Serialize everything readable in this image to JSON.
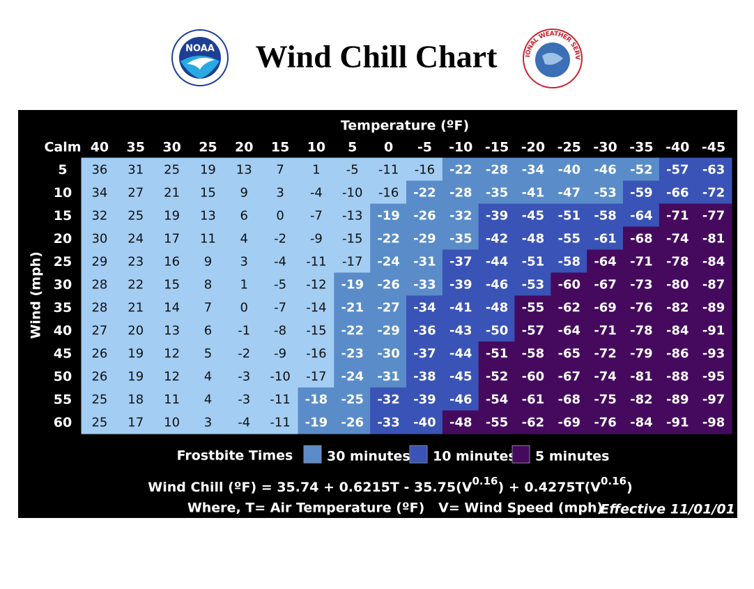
{
  "header": {
    "title": "Wind Chill Chart",
    "logos": {
      "noaa": "NOAA",
      "nws": "NATIONAL WEATHER SERVICE"
    }
  },
  "table": {
    "temperature_label": "Temperature (ºF)",
    "wind_label": "Wind (mph)",
    "calm_label": "Calm",
    "temperatures": [
      40,
      35,
      30,
      25,
      20,
      15,
      10,
      5,
      0,
      -5,
      -10,
      -15,
      -20,
      -25,
      -30,
      -35,
      -40,
      -45
    ],
    "winds": [
      5,
      10,
      15,
      20,
      25,
      30,
      35,
      40,
      45,
      50,
      55,
      60
    ],
    "rows": [
      [
        36,
        31,
        25,
        19,
        13,
        7,
        1,
        -5,
        -11,
        -16,
        -22,
        -28,
        -34,
        -40,
        -46,
        -52,
        -57,
        -63
      ],
      [
        34,
        27,
        21,
        15,
        9,
        3,
        -4,
        -10,
        -16,
        -22,
        -28,
        -35,
        -41,
        -47,
        -53,
        -59,
        -66,
        -72
      ],
      [
        32,
        25,
        19,
        13,
        6,
        0,
        -7,
        -13,
        -19,
        -26,
        -32,
        -39,
        -45,
        -51,
        -58,
        -64,
        -71,
        -77
      ],
      [
        30,
        24,
        17,
        11,
        4,
        -2,
        -9,
        -15,
        -22,
        -29,
        -35,
        -42,
        -48,
        -55,
        -61,
        -68,
        -74,
        -81
      ],
      [
        29,
        23,
        16,
        9,
        3,
        -4,
        -11,
        -17,
        -24,
        -31,
        -37,
        -44,
        -51,
        -58,
        -64,
        -71,
        -78,
        -84
      ],
      [
        28,
        22,
        15,
        8,
        1,
        -5,
        -12,
        -19,
        -26,
        -33,
        -39,
        -46,
        -53,
        -60,
        -67,
        -73,
        -80,
        -87
      ],
      [
        28,
        21,
        14,
        7,
        0,
        -7,
        -14,
        -21,
        -27,
        -34,
        -41,
        -48,
        -55,
        -62,
        -69,
        -76,
        -82,
        -89
      ],
      [
        27,
        20,
        13,
        6,
        -1,
        -8,
        -15,
        -22,
        -29,
        -36,
        -43,
        -50,
        -57,
        -64,
        -71,
        -78,
        -84,
        -91
      ],
      [
        26,
        19,
        12,
        5,
        -2,
        -9,
        -16,
        -23,
        -30,
        -37,
        -44,
        -51,
        -58,
        -65,
        -72,
        -79,
        -86,
        -93
      ],
      [
        26,
        19,
        12,
        4,
        -3,
        -10,
        -17,
        -24,
        -31,
        -38,
        -45,
        -52,
        -60,
        -67,
        -74,
        -81,
        -88,
        -95
      ],
      [
        25,
        18,
        11,
        4,
        -3,
        -11,
        -18,
        -25,
        -32,
        -39,
        -46,
        -54,
        -61,
        -68,
        -75,
        -82,
        -89,
        -97
      ],
      [
        25,
        17,
        10,
        3,
        -4,
        -11,
        -19,
        -26,
        -33,
        -40,
        -48,
        -55,
        -62,
        -69,
        -76,
        -84,
        -91,
        -98
      ]
    ],
    "zone_colors": [
      "#a3cdf3",
      "#5a8cc9",
      "#3a53b6",
      "#450a5e"
    ],
    "zone_starts": [
      [
        10,
        16,
        18
      ],
      [
        9,
        15,
        18
      ],
      [
        8,
        11,
        16
      ],
      [
        8,
        11,
        15
      ],
      [
        8,
        10,
        14
      ],
      [
        7,
        10,
        13
      ],
      [
        7,
        9,
        12
      ],
      [
        7,
        9,
        12
      ],
      [
        7,
        9,
        11
      ],
      [
        7,
        9,
        11
      ],
      [
        6,
        8,
        11
      ],
      [
        6,
        8,
        10
      ]
    ]
  },
  "legend": {
    "title": "Frostbite Times",
    "items": [
      "30 minutes",
      "10 minutes",
      "5 minutes"
    ]
  },
  "formula": {
    "parts": [
      "Wind Chill (ºF) = 35.74 + 0.6215T - 35.75(V",
      "0.16",
      ") + 0.4275T(V",
      "0.16",
      ")"
    ],
    "where": "Where, T= Air Temperature (ºF)   V= Wind Speed (mph)",
    "effective": "Effective 11/01/01"
  }
}
